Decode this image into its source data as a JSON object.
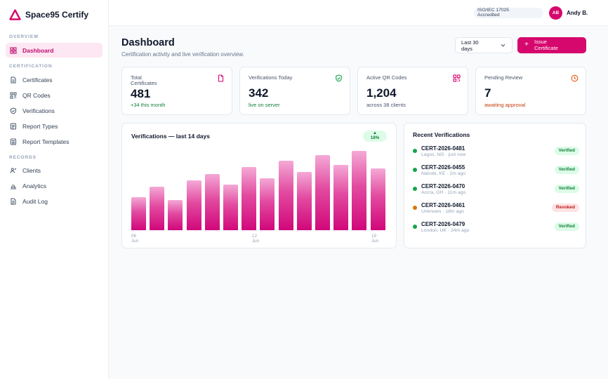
{
  "brand": {
    "name": "Space95 Certify",
    "accent": "#d6086e"
  },
  "sidebar": {
    "sections": [
      "OVERVIEW",
      "CERTIFICATION",
      "RECORDS"
    ],
    "items": [
      {
        "label": "Dashboard",
        "icon": "grid-icon"
      },
      {
        "label": "Certificates",
        "icon": "document-icon"
      },
      {
        "label": "QR Codes",
        "icon": "qr-icon"
      },
      {
        "label": "Verifications",
        "icon": "shield-check-icon"
      },
      {
        "label": "Report Types",
        "icon": "list-icon"
      },
      {
        "label": "Report Templates",
        "icon": "template-icon"
      },
      {
        "label": "Clients",
        "icon": "users-icon"
      },
      {
        "label": "Analytics",
        "icon": "bar-chart-icon"
      },
      {
        "label": "Audit Log",
        "icon": "log-icon"
      }
    ]
  },
  "topbar": {
    "accreditation_line1": "ISO/IEC 17025",
    "accreditation_line2": "Accredited",
    "avatar_initials": "AB",
    "user_name": "Andy B."
  },
  "header": {
    "title": "Dashboard",
    "subtitle": "Certification activity and live verification overview.",
    "range_line1": "Last 30",
    "range_line2": "days",
    "issue_line1": "Issue",
    "issue_line2": "Certificate"
  },
  "stats": [
    {
      "label_line1": "Total",
      "label_line2": "Certificates",
      "value": "481",
      "sub": "+34 this month",
      "sub_color": "#15803d",
      "icon": "document-icon"
    },
    {
      "label_line1": "Verifications Today",
      "label_line2": "",
      "value": "342",
      "sub": "live on server",
      "sub_color": "#15803d",
      "icon": "shield-check-icon"
    },
    {
      "label_line1": "Active QR Codes",
      "label_line2": "",
      "value": "1,204",
      "sub": "across 38 clients",
      "sub_color": "#475569",
      "icon": "qr-icon"
    },
    {
      "label_line1": "Pending Review",
      "label_line2": "",
      "value": "7",
      "sub": "awaiting approval",
      "sub_color": "#c2410c",
      "icon": "clock-icon"
    }
  ],
  "chart_data": {
    "type": "bar",
    "title": "Verifications — last 14 days",
    "trend_arrow": "▲",
    "trend": "18%",
    "values": [
      0.41,
      0.54,
      0.38,
      0.62,
      0.7,
      0.57,
      0.79,
      0.65,
      0.87,
      0.73,
      0.94,
      0.82,
      0.99,
      0.77
    ],
    "x_ticks": [
      {
        "index": 0,
        "day": "06",
        "month": "Jun"
      },
      {
        "index": 6,
        "day": "12",
        "month": "Jun"
      },
      {
        "index": 13,
        "day": "19",
        "month": "Jun"
      }
    ]
  },
  "recent": {
    "title": "Recent Verifications",
    "items": [
      {
        "id": "CERT-2026-0481",
        "meta": "Lagos, NG · just now",
        "status": "Verified",
        "ok": true
      },
      {
        "id": "CERT-2026-0455",
        "meta": "Nairobi, KE · 2m ago",
        "status": "Verified",
        "ok": true
      },
      {
        "id": "CERT-2026-0470",
        "meta": "Accra, GH · 11m ago",
        "status": "Verified",
        "ok": true
      },
      {
        "id": "CERT-2026-0461",
        "meta": "Unknown · 18m ago",
        "status": "Revoked",
        "ok": false
      },
      {
        "id": "CERT-2026-0479",
        "meta": "London, UK · 24m ago",
        "status": "Verified",
        "ok": true
      }
    ]
  }
}
